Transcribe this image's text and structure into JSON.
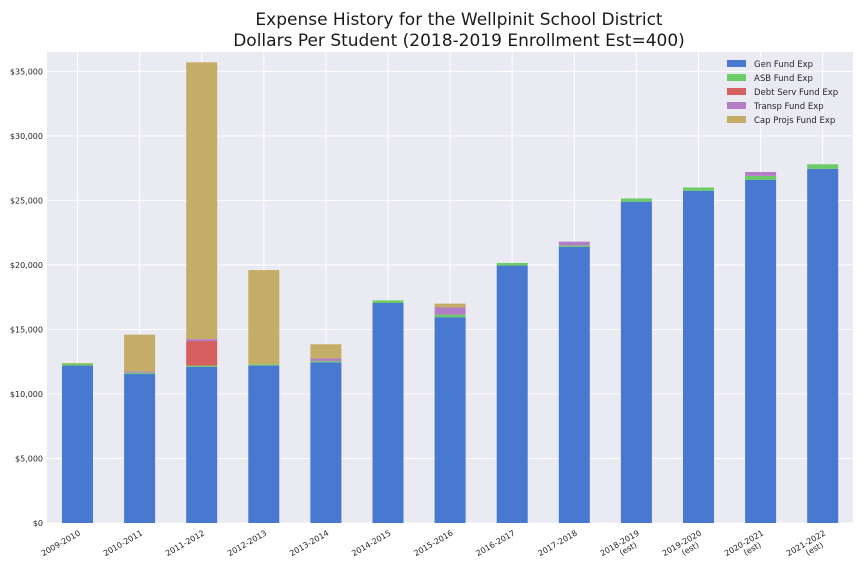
{
  "chart_data": {
    "type": "bar",
    "stacked": true,
    "title": "Expense History for the Wellpinit School District",
    "subtitle": "Dollars Per Student (2018-2019 Enrollment Est=400)",
    "xlabel": "",
    "ylabel": "",
    "ylim": [
      0,
      36500
    ],
    "yticks": [
      0,
      5000,
      10000,
      15000,
      20000,
      25000,
      30000,
      35000
    ],
    "ytick_labels": [
      "$0",
      "$5,000",
      "$10,000",
      "$15,000",
      "$20,000",
      "$25,000",
      "$30,000",
      "$35,000"
    ],
    "grid": true,
    "legend_position": "top-right",
    "categories": [
      [
        "2009-2010"
      ],
      [
        "2010-2011"
      ],
      [
        "2011-2012"
      ],
      [
        "2012-2013"
      ],
      [
        "2013-2014"
      ],
      [
        "2014-2015"
      ],
      [
        "2015-2016"
      ],
      [
        "2016-2017"
      ],
      [
        "2017-2018"
      ],
      [
        "2018-2019",
        "(est)"
      ],
      [
        "2019-2020",
        "(est)"
      ],
      [
        "2020-2021",
        "(est)"
      ],
      [
        "2021-2022",
        "(est)"
      ]
    ],
    "series": [
      {
        "name": "Gen Fund Exp",
        "color": "#4878cf",
        "values": [
          12200,
          11550,
          12100,
          12200,
          12450,
          17050,
          15950,
          19950,
          21400,
          24900,
          25750,
          26600,
          27450
        ]
      },
      {
        "name": "ASB Fund Exp",
        "color": "#6acc65",
        "values": [
          150,
          100,
          100,
          100,
          100,
          200,
          200,
          200,
          100,
          250,
          250,
          300,
          350
        ]
      },
      {
        "name": "Debt Serv Fund Exp",
        "color": "#d65f5f",
        "values": [
          0,
          0,
          1900,
          0,
          0,
          0,
          0,
          0,
          0,
          0,
          0,
          0,
          0
        ]
      },
      {
        "name": "Transp Fund Exp",
        "color": "#b47cc7",
        "values": [
          0,
          100,
          150,
          0,
          200,
          0,
          550,
          0,
          300,
          0,
          0,
          300,
          0
        ]
      },
      {
        "name": "Cap Projs Fund Exp",
        "color": "#c4ad66",
        "values": [
          50,
          2850,
          21450,
          7300,
          1100,
          0,
          300,
          0,
          0,
          0,
          0,
          0,
          0
        ]
      }
    ]
  }
}
